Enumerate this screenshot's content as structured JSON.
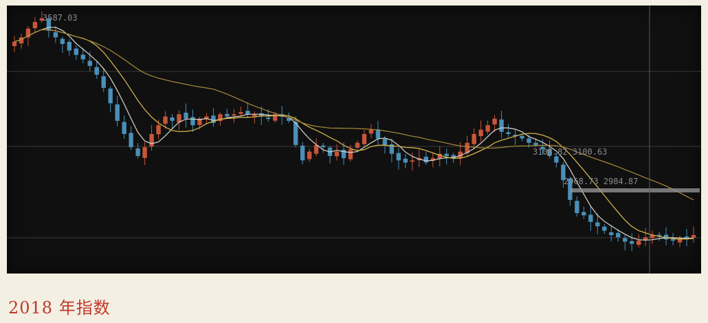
{
  "caption": "2018 年指数",
  "chart_data": {
    "type": "candlestick",
    "x_count": 100,
    "ylim": [
      2450,
      3620
    ],
    "annotations": {
      "high": "3587.03",
      "mid_pair": "3108.82  3100.63",
      "low_pair": "2968.73  2984.87"
    },
    "colors": {
      "up": "#c8553a",
      "down": "#4a8fb8",
      "ma_fast": "#d8d8d0",
      "ma_mid": "#d2b24a",
      "ma_slow": "#a88a3a",
      "grid": "#3a3a3a",
      "marker": "#cfcfcf"
    },
    "close_series": [
      3480,
      3500,
      3540,
      3570,
      3587,
      3530,
      3500,
      3470,
      3440,
      3420,
      3400,
      3370,
      3330,
      3270,
      3200,
      3120,
      3060,
      3000,
      2960,
      3000,
      3060,
      3100,
      3140,
      3120,
      3150,
      3130,
      3100,
      3130,
      3140,
      3110,
      3150,
      3140,
      3150,
      3160,
      3150,
      3150,
      3140,
      3130,
      3150,
      3140,
      3120,
      3010,
      2940,
      2980,
      3010,
      3000,
      2960,
      2980,
      2950,
      2990,
      3020,
      3060,
      3080,
      3040,
      3010,
      2970,
      2940,
      2930,
      2940,
      2950,
      2930,
      2950,
      2970,
      2960,
      2950,
      2980,
      3020,
      3060,
      3080,
      3100,
      3130,
      3070,
      3060,
      3050,
      3040,
      3020,
      3010,
      2990,
      2960,
      2930,
      2850,
      2760,
      2700,
      2690,
      2660,
      2640,
      2620,
      2600,
      2590,
      2570,
      2560,
      2575,
      2590,
      2600,
      2595,
      2580,
      2575,
      2585,
      2590,
      2600
    ]
  }
}
